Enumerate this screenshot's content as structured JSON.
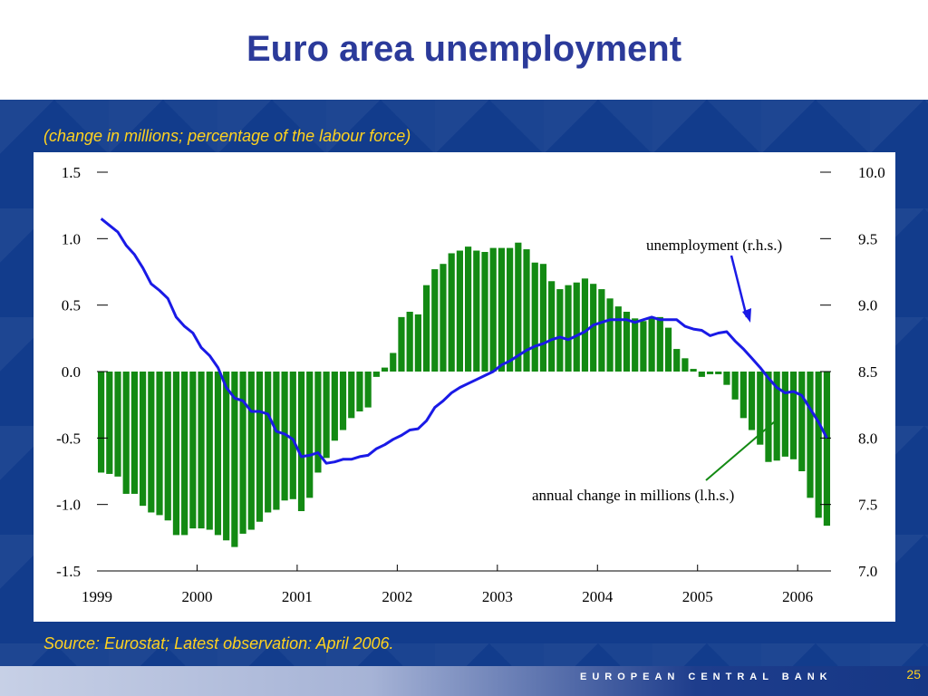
{
  "slide": {
    "title": "Euro area unemployment",
    "subtitle": "(change in millions; percentage of the labour force)",
    "source": "Source: Eurostat; Latest observation: April 2006.",
    "footer": "EUROPEAN CENTRAL BANK",
    "page_number": "25"
  },
  "colors": {
    "title": "#2b3a9a",
    "band": "#123c8c",
    "yellow_text": "#ffd21f",
    "bars": "#138a13",
    "line": "#1a1ae6",
    "annotation_line_arrow": "#1a1ae6",
    "annotation_bar_arrow": "#138a13"
  },
  "chart_data": {
    "type": "bar",
    "x_tick_labels": [
      "1999",
      "2000",
      "2001",
      "2002",
      "2003",
      "2004",
      "2005",
      "2006"
    ],
    "y_left": {
      "lim": [
        -1.5,
        1.5
      ],
      "ticks": [
        "1.5",
        "1.0",
        "0.5",
        "0.0",
        "-0.5",
        "-1.0",
        "-1.5"
      ]
    },
    "y_right": {
      "lim": [
        7.0,
        10.0
      ],
      "ticks": [
        "10.0",
        "9.5",
        "9.0",
        "8.5",
        "8.0",
        "7.5",
        "7.0"
      ]
    },
    "grid": false,
    "annotations": {
      "line_label": "unemployment (r.h.s.)",
      "bar_label": "annual change in millions (l.h.s.)"
    },
    "series": [
      {
        "name": "annual change in millions (l.h.s.)",
        "type": "bar",
        "axis": "left",
        "values": [
          -0.76,
          -0.77,
          -0.79,
          -0.92,
          -0.92,
          -1.01,
          -1.06,
          -1.08,
          -1.12,
          -1.23,
          -1.23,
          -1.18,
          -1.18,
          -1.19,
          -1.23,
          -1.27,
          -1.32,
          -1.22,
          -1.19,
          -1.13,
          -1.06,
          -1.04,
          -0.97,
          -0.96,
          -1.05,
          -0.95,
          -0.76,
          -0.65,
          -0.52,
          -0.44,
          -0.35,
          -0.3,
          -0.27,
          -0.04,
          0.03,
          0.14,
          0.41,
          0.45,
          0.43,
          0.65,
          0.77,
          0.81,
          0.89,
          0.91,
          0.94,
          0.91,
          0.9,
          0.93,
          0.93,
          0.93,
          0.97,
          0.92,
          0.82,
          0.81,
          0.68,
          0.62,
          0.65,
          0.67,
          0.7,
          0.66,
          0.62,
          0.55,
          0.49,
          0.45,
          0.4,
          0.38,
          0.4,
          0.41,
          0.33,
          0.17,
          0.1,
          0.02,
          -0.04,
          -0.02,
          -0.02,
          -0.1,
          -0.21,
          -0.35,
          -0.44,
          -0.55,
          -0.68,
          -0.67,
          -0.64,
          -0.66,
          -0.75,
          -0.95,
          -1.1,
          -1.16
        ]
      },
      {
        "name": "unemployment (r.h.s.)",
        "type": "line",
        "axis": "right",
        "values": [
          9.65,
          9.6,
          9.55,
          9.45,
          9.38,
          9.28,
          9.16,
          9.11,
          9.05,
          8.91,
          8.84,
          8.79,
          8.68,
          8.62,
          8.53,
          8.38,
          8.3,
          8.28,
          8.2,
          8.2,
          8.18,
          8.05,
          8.03,
          7.99,
          7.86,
          7.87,
          7.89,
          7.81,
          7.82,
          7.84,
          7.84,
          7.86,
          7.87,
          7.92,
          7.95,
          7.99,
          8.02,
          8.06,
          8.07,
          8.13,
          8.23,
          8.28,
          8.34,
          8.38,
          8.41,
          8.44,
          8.47,
          8.5,
          8.55,
          8.58,
          8.62,
          8.66,
          8.69,
          8.71,
          8.74,
          8.76,
          8.74,
          8.77,
          8.8,
          8.85,
          8.87,
          8.89,
          8.89,
          8.89,
          8.87,
          8.89,
          8.91,
          8.89,
          8.89,
          8.89,
          8.84,
          8.82,
          8.81,
          8.77,
          8.79,
          8.8,
          8.73,
          8.67,
          8.6,
          8.53,
          8.45,
          8.38,
          8.34,
          8.35,
          8.32,
          8.22,
          8.12,
          8.0
        ]
      }
    ]
  }
}
